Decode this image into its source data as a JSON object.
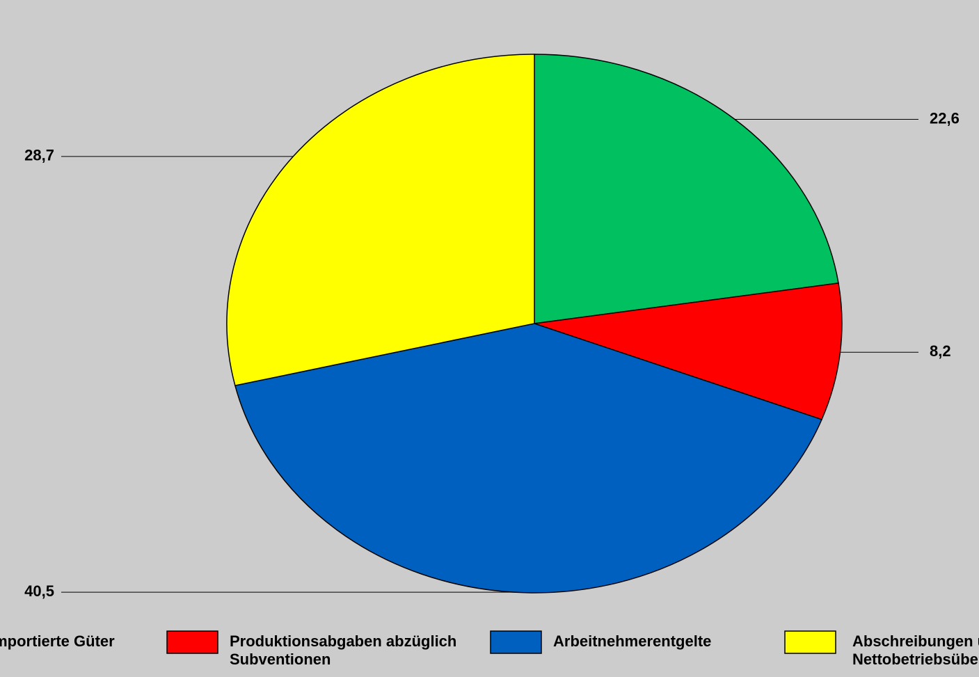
{
  "chart_data": {
    "type": "pie",
    "categories": [
      "Importierte Güter",
      "Produktionsabgaben abzüglich Subventionen",
      "Arbeitnehmerentgelte",
      "Abschreibungen und Nettobetriebsüberschuss"
    ],
    "values": [
      22.6,
      8.2,
      40.5,
      28.7
    ],
    "value_labels": [
      "22,6",
      "8,2",
      "40,5",
      "28,7"
    ],
    "colors": [
      "#00c060",
      "#ff0000",
      "#0060c0",
      "#ffff00"
    ],
    "legend": "bottom"
  }
}
